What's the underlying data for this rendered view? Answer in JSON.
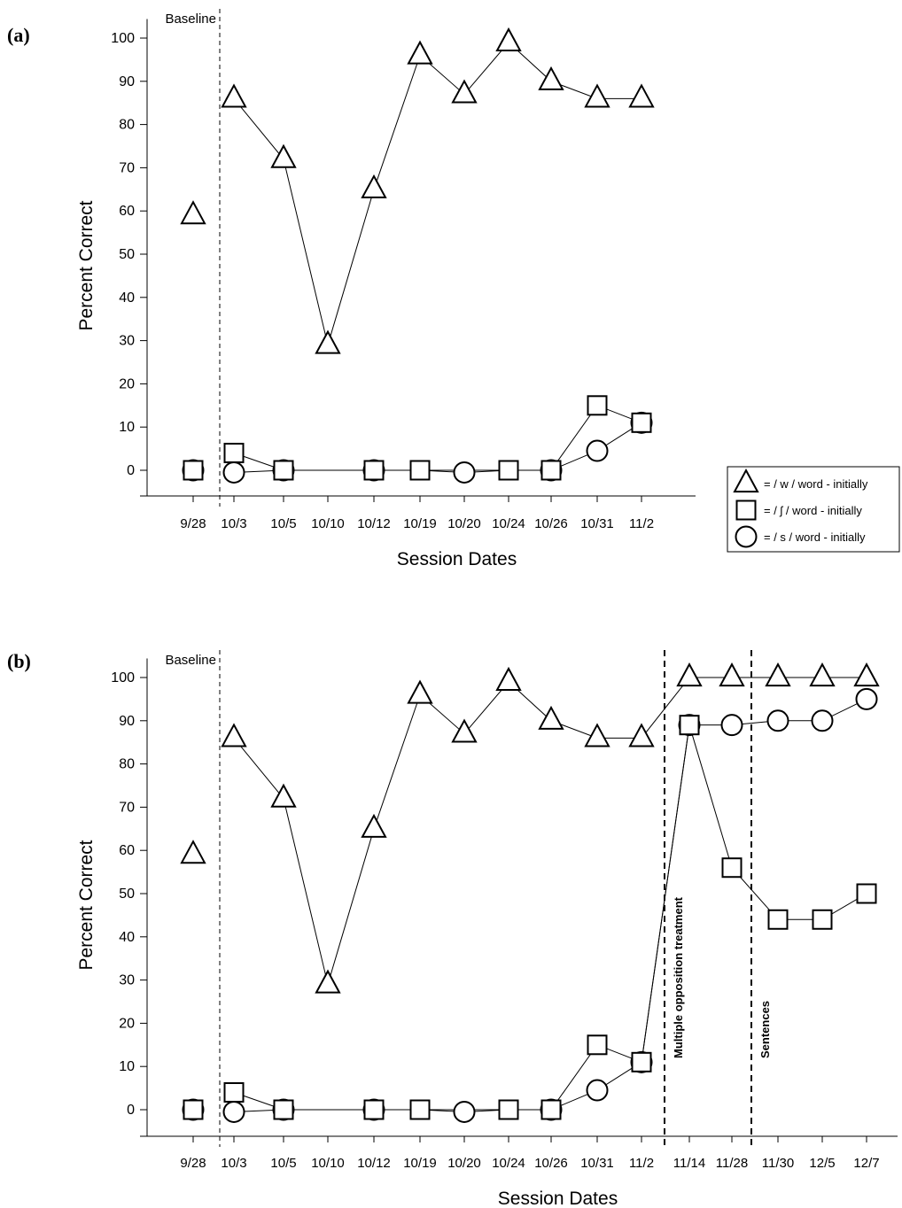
{
  "chart_data": [
    {
      "type": "line",
      "panel_label": "(a)",
      "xlabel": "Session Dates",
      "ylabel": "Percent Correct",
      "ylim": [
        -6,
        104
      ],
      "yticks": [
        0,
        10,
        20,
        30,
        40,
        50,
        60,
        70,
        80,
        90,
        100
      ],
      "categories": [
        "9/28",
        "10/3",
        "10/5",
        "10/10",
        "10/12",
        "10/19",
        "10/20",
        "10/24",
        "10/26",
        "10/31",
        "11/2"
      ],
      "phase_lines": [
        {
          "after_index": 0,
          "label": "Baseline",
          "label_side": "left",
          "style": "dashed-thin"
        }
      ],
      "series": [
        {
          "name": "= / w / word - initially",
          "marker": "triangle",
          "segments": [
            [
              0
            ],
            [
              1,
              2,
              3,
              4,
              5,
              6,
              7,
              8,
              9,
              10
            ]
          ],
          "values": [
            59,
            86,
            72,
            29,
            65,
            96,
            87,
            99,
            90,
            86,
            86
          ]
        },
        {
          "name": "= / ʃ / word - initially",
          "marker": "square",
          "segments": [
            [
              0
            ],
            [
              1,
              2
            ],
            [
              4,
              5,
              6,
              7,
              8,
              9,
              10
            ]
          ],
          "values": [
            0,
            4,
            0,
            null,
            0,
            0,
            null,
            0,
            0,
            15,
            11
          ]
        },
        {
          "name": "= / s / word - initially",
          "marker": "circle",
          "segments": [
            [
              0
            ],
            [
              1,
              2,
              3,
              4,
              5,
              6,
              7,
              8,
              9,
              10
            ]
          ],
          "values": [
            0,
            -0.5,
            0,
            null,
            0,
            null,
            -0.5,
            null,
            0,
            4.5,
            11
          ]
        }
      ],
      "legend": {
        "placement": "bottom-right, outside plot"
      }
    },
    {
      "type": "line",
      "panel_label": "(b)",
      "xlabel": "Session Dates",
      "ylabel": "Percent Correct",
      "ylim": [
        -6,
        104
      ],
      "yticks": [
        0,
        10,
        20,
        30,
        40,
        50,
        60,
        70,
        80,
        90,
        100
      ],
      "categories": [
        "9/28",
        "10/3",
        "10/5",
        "10/10",
        "10/12",
        "10/19",
        "10/20",
        "10/24",
        "10/26",
        "10/31",
        "11/2",
        "11/14",
        "11/28",
        "11/30",
        "12/5",
        "12/7"
      ],
      "phase_lines": [
        {
          "after_index": 0,
          "label": "Baseline",
          "label_side": "left",
          "style": "dashed-thin"
        },
        {
          "after_index": 10,
          "label": "Multiple opposition treatment",
          "label_side": "right-vertical",
          "style": "dashed-bold"
        },
        {
          "after_index": 12,
          "label": "Sentences",
          "label_side": "right-vertical",
          "style": "dashed-bold"
        }
      ],
      "series": [
        {
          "name": "= / w / word - initially",
          "marker": "triangle",
          "segments": [
            [
              0
            ],
            [
              1,
              2,
              3,
              4,
              5,
              6,
              7,
              8,
              9,
              10,
              11,
              12,
              13,
              14,
              15
            ]
          ],
          "values": [
            59,
            86,
            72,
            29,
            65,
            96,
            87,
            99,
            90,
            86,
            86,
            100,
            100,
            100,
            100,
            100
          ]
        },
        {
          "name": "= / ʃ / word - initially",
          "marker": "square",
          "segments": [
            [
              0
            ],
            [
              1,
              2
            ],
            [
              4,
              5,
              6,
              7,
              8,
              9,
              10,
              11,
              12,
              13,
              14,
              15
            ]
          ],
          "values": [
            0,
            4,
            0,
            null,
            0,
            0,
            null,
            0,
            0,
            15,
            11,
            89,
            56,
            44,
            44,
            50
          ]
        },
        {
          "name": "= / s / word - initially",
          "marker": "circle",
          "segments": [
            [
              0
            ],
            [
              1,
              2,
              3,
              4,
              5,
              6,
              7,
              8,
              9,
              10,
              11,
              12,
              13,
              14,
              15
            ]
          ],
          "values": [
            0,
            -0.5,
            0,
            null,
            0,
            null,
            -0.5,
            null,
            0,
            4.5,
            11,
            89,
            89,
            90,
            90,
            95
          ]
        }
      ]
    }
  ],
  "legend": {
    "items": [
      {
        "marker": "triangle",
        "label": "= / w / word - initially"
      },
      {
        "marker": "square",
        "label": "= / ʃ / word - initially"
      },
      {
        "marker": "circle",
        "label": "= / s / word - initially"
      }
    ]
  }
}
